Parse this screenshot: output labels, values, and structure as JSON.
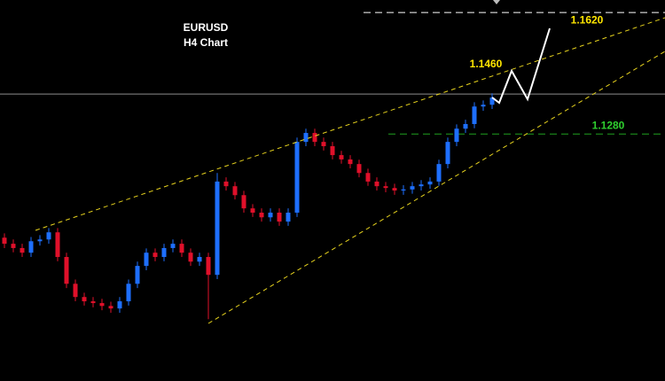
{
  "chart_data": {
    "type": "candlestick",
    "title": "EURUSD",
    "subtitle": "H4 Chart",
    "open": [
      1.099,
      1.0973,
      1.0961,
      1.0948,
      1.098,
      1.0985,
      1.1005,
      1.0936,
      1.0861,
      1.0824,
      1.0812,
      1.0807,
      1.0799,
      1.0792,
      1.0812,
      1.0861,
      1.0911,
      1.0948,
      1.0936,
      1.0961,
      1.0973,
      1.0948,
      1.0923,
      1.0936,
      1.0886,
      1.1147,
      1.1134,
      1.1109,
      1.1072,
      1.106,
      1.1047,
      1.106,
      1.1035,
      1.106,
      1.1258,
      1.1283,
      1.1258,
      1.1246,
      1.1221,
      1.1209,
      1.1196,
      1.1171,
      1.1147,
      1.1134,
      1.1129,
      1.1122,
      1.1125,
      1.1134,
      1.1139,
      1.1147,
      1.1196,
      1.1258,
      1.1295,
      1.1308,
      1.1357,
      1.1362
    ],
    "high": [
      1.1002,
      1.0985,
      1.0973,
      1.0992,
      1.0997,
      1.1017,
      1.1017,
      1.0948,
      1.0873,
      1.0836,
      1.0824,
      1.0819,
      1.0811,
      1.0824,
      1.0873,
      1.0923,
      1.096,
      1.096,
      1.0973,
      1.0985,
      1.0985,
      1.096,
      1.0948,
      1.0948,
      1.1171,
      1.1159,
      1.1146,
      1.1121,
      1.1084,
      1.1072,
      1.1072,
      1.1072,
      1.1072,
      1.127,
      1.1295,
      1.1295,
      1.127,
      1.1258,
      1.1233,
      1.1221,
      1.1208,
      1.1183,
      1.1159,
      1.1146,
      1.1141,
      1.1137,
      1.1146,
      1.1151,
      1.1159,
      1.1208,
      1.127,
      1.1307,
      1.132,
      1.1369,
      1.1374,
      1.1394
    ],
    "low": [
      1.0961,
      1.0949,
      1.0936,
      1.0936,
      1.0968,
      1.0973,
      1.0924,
      1.0849,
      1.0812,
      1.08,
      1.0795,
      1.0787,
      1.078,
      1.078,
      1.08,
      1.0849,
      1.0899,
      1.0924,
      1.0924,
      1.0949,
      1.0936,
      1.0911,
      1.0911,
      1.0762,
      1.0874,
      1.1122,
      1.1097,
      1.106,
      1.1048,
      1.1035,
      1.1035,
      1.1023,
      1.1023,
      1.1048,
      1.1246,
      1.1246,
      1.1234,
      1.1209,
      1.1197,
      1.1184,
      1.1159,
      1.1135,
      1.1122,
      1.1117,
      1.111,
      1.111,
      1.1113,
      1.1122,
      1.1127,
      1.1135,
      1.1184,
      1.1246,
      1.1283,
      1.1296,
      1.1345,
      1.135
    ],
    "close": [
      1.0973,
      1.0961,
      1.0948,
      1.098,
      1.0985,
      1.1005,
      1.0936,
      1.0861,
      1.0824,
      1.0812,
      1.0807,
      1.0799,
      1.0792,
      1.0812,
      1.0861,
      1.0911,
      1.0948,
      1.0936,
      1.0961,
      1.0973,
      1.0948,
      1.0923,
      1.0936,
      1.0886,
      1.1147,
      1.1134,
      1.1109,
      1.1072,
      1.106,
      1.1047,
      1.106,
      1.1035,
      1.106,
      1.1258,
      1.1283,
      1.1258,
      1.1246,
      1.1221,
      1.1209,
      1.1196,
      1.1171,
      1.1147,
      1.1134,
      1.1129,
      1.1122,
      1.1125,
      1.1134,
      1.1139,
      1.1147,
      1.1196,
      1.1258,
      1.1295,
      1.1308,
      1.1357,
      1.1362,
      1.1382
    ],
    "up_color": "#1e6fff",
    "down_color": "#e0102a",
    "ylim": [
      1.0589,
      1.1655
    ],
    "current_price": 1.1392,
    "current_price_color": "#8c8c8c",
    "levels": [
      {
        "value": 1.162,
        "label": "1.1620",
        "color": "#ffffff",
        "label_color": "#ffe600"
      },
      {
        "value": 1.128,
        "label": "1.1280",
        "color": "#1fa01f",
        "label_color": "#2fd02f"
      }
    ],
    "annotations": [
      {
        "value": 1.146,
        "label": "1.1460",
        "color": "#ffe600"
      }
    ]
  }
}
